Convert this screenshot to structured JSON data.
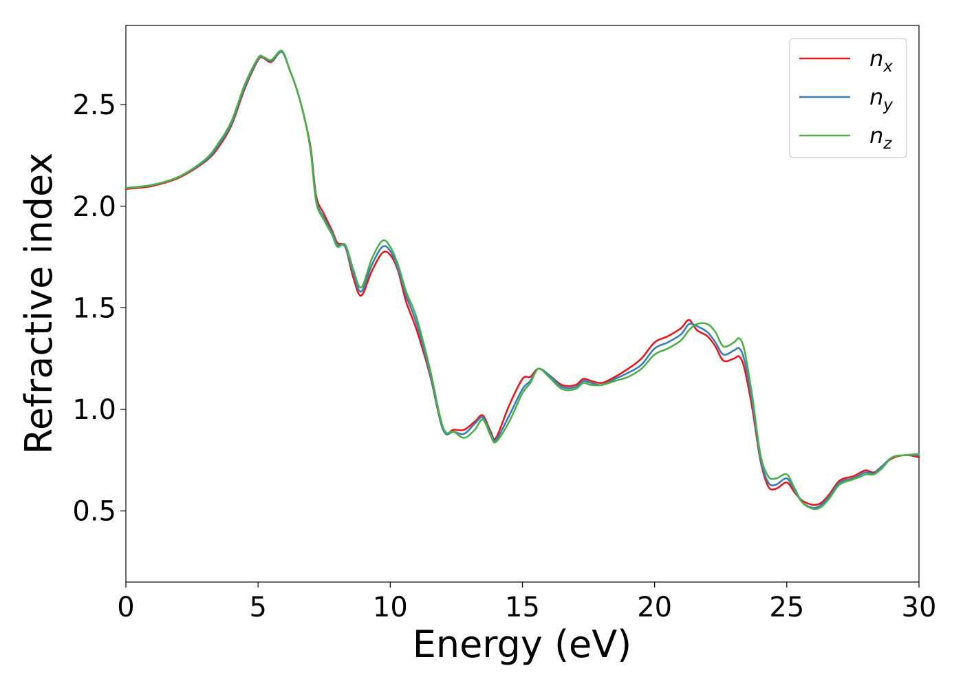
{
  "chart_data": {
    "type": "line",
    "title": "",
    "xlabel": "Energy (eV)",
    "ylabel": "Refractive index",
    "xlim": [
      0,
      30
    ],
    "ylim": [
      0.15,
      2.89
    ],
    "xticks": [
      0,
      5,
      10,
      15,
      20,
      25,
      30
    ],
    "xtick_labels": [
      "0",
      "5",
      "10",
      "15",
      "20",
      "25",
      "30"
    ],
    "yticks": [
      0.5,
      1.0,
      1.5,
      2.0,
      2.5
    ],
    "ytick_labels": [
      "0.5",
      "1.0",
      "1.5",
      "2.0",
      "2.5"
    ],
    "grid": false,
    "legend_position": "top-right",
    "series": [
      {
        "name": "n_x",
        "label_base": "n",
        "label_sub": "x",
        "color": "#e41a1c",
        "x": [
          0,
          1,
          2,
          3,
          3.5,
          4,
          4.5,
          5,
          5.2,
          5.5,
          5.9,
          6.2,
          6.5,
          6.8,
          7.0,
          7.2,
          7.5,
          7.8,
          8.0,
          8.3,
          8.6,
          8.9,
          9.3,
          9.7,
          10.0,
          10.3,
          10.6,
          11.0,
          11.5,
          12.0,
          12.4,
          12.8,
          13.2,
          13.5,
          13.8,
          14.0,
          14.5,
          15.0,
          15.3,
          15.6,
          16.0,
          16.5,
          17.0,
          17.3,
          17.6,
          18.0,
          18.5,
          19.0,
          19.5,
          20.0,
          20.5,
          21.0,
          21.3,
          21.6,
          22.0,
          22.3,
          22.6,
          23.0,
          23.2,
          23.4,
          23.7,
          24.0,
          24.3,
          24.6,
          25.0,
          25.3,
          25.6,
          26.0,
          26.3,
          26.6,
          27.0,
          27.5,
          27.8,
          28.0,
          28.3,
          28.6,
          29.0,
          29.5,
          30.0
        ],
        "values": [
          2.085,
          2.1,
          2.14,
          2.22,
          2.29,
          2.4,
          2.58,
          2.72,
          2.73,
          2.71,
          2.76,
          2.67,
          2.56,
          2.41,
          2.28,
          2.05,
          1.96,
          1.88,
          1.82,
          1.8,
          1.65,
          1.56,
          1.68,
          1.77,
          1.76,
          1.68,
          1.53,
          1.39,
          1.17,
          0.9,
          0.9,
          0.9,
          0.94,
          0.97,
          0.89,
          0.86,
          1.02,
          1.15,
          1.16,
          1.2,
          1.17,
          1.12,
          1.12,
          1.15,
          1.14,
          1.13,
          1.16,
          1.2,
          1.25,
          1.33,
          1.36,
          1.4,
          1.44,
          1.39,
          1.36,
          1.31,
          1.24,
          1.25,
          1.26,
          1.2,
          1.0,
          0.75,
          0.62,
          0.61,
          0.64,
          0.59,
          0.55,
          0.53,
          0.54,
          0.58,
          0.65,
          0.67,
          0.69,
          0.7,
          0.69,
          0.72,
          0.76,
          0.775,
          0.765
        ]
      },
      {
        "name": "n_y",
        "label_base": "n",
        "label_sub": "y",
        "color": "#377eb8",
        "x": [
          0,
          1,
          2,
          3,
          3.5,
          4,
          4.5,
          5,
          5.2,
          5.5,
          5.9,
          6.2,
          6.5,
          6.8,
          7.0,
          7.2,
          7.5,
          7.8,
          8.0,
          8.3,
          8.6,
          8.9,
          9.3,
          9.7,
          10.0,
          10.3,
          10.6,
          11.0,
          11.5,
          12.0,
          12.4,
          12.8,
          13.2,
          13.5,
          13.8,
          14.0,
          14.5,
          15.0,
          15.3,
          15.6,
          16.0,
          16.5,
          17.0,
          17.3,
          17.6,
          18.0,
          18.5,
          19.0,
          19.5,
          20.0,
          20.5,
          21.0,
          21.3,
          21.6,
          22.0,
          22.3,
          22.6,
          23.0,
          23.2,
          23.4,
          23.7,
          24.0,
          24.3,
          24.6,
          25.0,
          25.3,
          25.6,
          26.0,
          26.3,
          26.6,
          27.0,
          27.5,
          27.8,
          28.0,
          28.3,
          28.6,
          29.0,
          29.5,
          30.0
        ],
        "values": [
          2.09,
          2.105,
          2.145,
          2.225,
          2.3,
          2.41,
          2.59,
          2.725,
          2.735,
          2.715,
          2.76,
          2.67,
          2.56,
          2.41,
          2.27,
          2.03,
          1.94,
          1.87,
          1.81,
          1.8,
          1.67,
          1.58,
          1.71,
          1.8,
          1.78,
          1.69,
          1.56,
          1.42,
          1.18,
          0.9,
          0.89,
          0.88,
          0.93,
          0.96,
          0.88,
          0.85,
          0.97,
          1.1,
          1.14,
          1.2,
          1.17,
          1.11,
          1.11,
          1.14,
          1.13,
          1.12,
          1.15,
          1.18,
          1.22,
          1.3,
          1.33,
          1.37,
          1.42,
          1.41,
          1.38,
          1.33,
          1.27,
          1.29,
          1.3,
          1.24,
          1.03,
          0.76,
          0.64,
          0.63,
          0.66,
          0.6,
          0.54,
          0.515,
          0.53,
          0.57,
          0.64,
          0.66,
          0.68,
          0.69,
          0.685,
          0.72,
          0.765,
          0.775,
          0.775
        ]
      },
      {
        "name": "n_z",
        "label_base": "n",
        "label_sub": "z",
        "color": "#4daf4a",
        "x": [
          0,
          1,
          2,
          3,
          3.5,
          4,
          4.5,
          5,
          5.2,
          5.5,
          5.9,
          6.2,
          6.5,
          6.8,
          7.0,
          7.2,
          7.5,
          7.8,
          8.0,
          8.3,
          8.6,
          8.9,
          9.3,
          9.7,
          10.0,
          10.3,
          10.6,
          11.0,
          11.5,
          12.0,
          12.4,
          12.8,
          13.2,
          13.5,
          13.8,
          14.0,
          14.5,
          15.0,
          15.3,
          15.6,
          16.0,
          16.5,
          17.0,
          17.3,
          17.6,
          18.0,
          18.5,
          19.0,
          19.5,
          20.0,
          20.5,
          21.0,
          21.3,
          21.6,
          22.0,
          22.3,
          22.6,
          23.0,
          23.2,
          23.4,
          23.7,
          24.0,
          24.3,
          24.6,
          25.0,
          25.3,
          25.6,
          26.0,
          26.3,
          26.6,
          27.0,
          27.5,
          27.8,
          28.0,
          28.3,
          28.6,
          29.0,
          29.5,
          30.0
        ],
        "values": [
          2.09,
          2.105,
          2.145,
          2.23,
          2.31,
          2.42,
          2.6,
          2.73,
          2.735,
          2.72,
          2.765,
          2.67,
          2.56,
          2.41,
          2.26,
          2.02,
          1.93,
          1.86,
          1.8,
          1.81,
          1.69,
          1.6,
          1.74,
          1.83,
          1.8,
          1.71,
          1.58,
          1.45,
          1.2,
          0.91,
          0.89,
          0.86,
          0.9,
          0.95,
          0.87,
          0.84,
          0.94,
          1.08,
          1.13,
          1.2,
          1.16,
          1.1,
          1.1,
          1.13,
          1.12,
          1.12,
          1.14,
          1.16,
          1.2,
          1.27,
          1.3,
          1.34,
          1.39,
          1.42,
          1.42,
          1.38,
          1.31,
          1.33,
          1.35,
          1.29,
          1.06,
          0.78,
          0.67,
          0.66,
          0.68,
          0.61,
          0.54,
          0.51,
          0.52,
          0.56,
          0.63,
          0.655,
          0.67,
          0.68,
          0.68,
          0.71,
          0.765,
          0.775,
          0.78
        ]
      }
    ]
  }
}
